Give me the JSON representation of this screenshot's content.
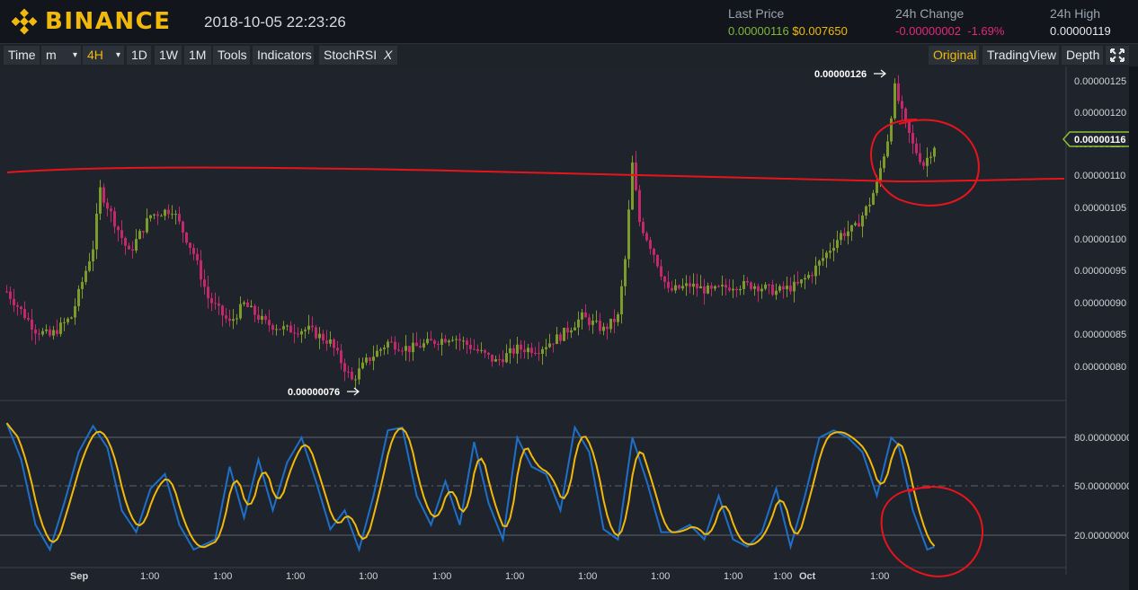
{
  "header": {
    "logo_text": "BINANCE",
    "datetime": "2018-10-05 22:23:26",
    "last_price_label": "Last Price",
    "last_price_btc": "0.00000116",
    "last_price_usd": "$0.007650",
    "change_label": "24h Change",
    "change_value": "-0.00000002",
    "change_percent": "-1.69%",
    "high_label": "24h High",
    "high_value": "0.00000119"
  },
  "toolbar": {
    "time": "Time",
    "minutes": "m",
    "minutes_caret": "▾",
    "h4": "4H",
    "h4_caret": "▾",
    "d1": "1D",
    "w1": "1W",
    "m1": "1M",
    "tools": "Tools",
    "indicators": "Indicators",
    "stochrsi": "StochRSI",
    "stochrsi_close": "X",
    "original": "Original",
    "tradingview": "TradingView",
    "depth": "Depth",
    "fullscreen_icon": "expand-icon"
  },
  "colors": {
    "up": "#7c9b2a",
    "down": "#c2296d",
    "stoch_k": "#1e6fc8",
    "stoch_d": "#f0b90b",
    "annotation": "#e8141c",
    "accent": "#f0b90b",
    "price_tag_border": "#8cbf35"
  },
  "price_axis": {
    "labels": [
      "0.00000125",
      "0.00000120",
      "0.00000115",
      "0.00000110",
      "0.00000105",
      "0.00000100",
      "0.00000095",
      "0.00000090",
      "0.00000085",
      "0.00000080"
    ],
    "current_tag": "0.00000116"
  },
  "markers": {
    "high": "0.00000126",
    "low": "0.00000076"
  },
  "stoch_axis": {
    "labels": [
      "80.00000000",
      "50.00000000",
      "20.00000000"
    ]
  },
  "time_axis": {
    "labels": [
      "Sep",
      "1:00",
      "1:00",
      "1:00",
      "1:00",
      "1:00",
      "1:00",
      "1:00",
      "1:00",
      "1:00",
      "1:00",
      "Oct",
      "1:00"
    ]
  },
  "chart_data": {
    "type": "candlestick",
    "price_range": [
      7.4e-07,
      1.275e-06
    ],
    "close_path": [
      {
        "i": 0,
        "p": 92
      },
      {
        "i": 8,
        "p": 86
      },
      {
        "i": 12,
        "p": 85
      },
      {
        "i": 18,
        "p": 88
      },
      {
        "i": 24,
        "p": 99
      },
      {
        "i": 26,
        "p": 108
      },
      {
        "i": 30,
        "p": 103
      },
      {
        "i": 34,
        "p": 98
      },
      {
        "i": 40,
        "p": 104
      },
      {
        "i": 46,
        "p": 105
      },
      {
        "i": 52,
        "p": 98
      },
      {
        "i": 56,
        "p": 91
      },
      {
        "i": 62,
        "p": 87
      },
      {
        "i": 66,
        "p": 90
      },
      {
        "i": 72,
        "p": 87
      },
      {
        "i": 78,
        "p": 86
      },
      {
        "i": 84,
        "p": 86
      },
      {
        "i": 90,
        "p": 84
      },
      {
        "i": 96,
        "p": 78
      },
      {
        "i": 100,
        "p": 81
      },
      {
        "i": 106,
        "p": 84
      },
      {
        "i": 112,
        "p": 83
      },
      {
        "i": 118,
        "p": 84
      },
      {
        "i": 124,
        "p": 85
      },
      {
        "i": 130,
        "p": 83
      },
      {
        "i": 136,
        "p": 81
      },
      {
        "i": 142,
        "p": 83
      },
      {
        "i": 148,
        "p": 83
      },
      {
        "i": 154,
        "p": 85
      },
      {
        "i": 160,
        "p": 88
      },
      {
        "i": 166,
        "p": 86
      },
      {
        "i": 170,
        "p": 88
      },
      {
        "i": 172,
        "p": 97
      },
      {
        "i": 174,
        "p": 112
      },
      {
        "i": 176,
        "p": 103
      },
      {
        "i": 180,
        "p": 98
      },
      {
        "i": 184,
        "p": 92
      },
      {
        "i": 190,
        "p": 93
      },
      {
        "i": 196,
        "p": 92
      },
      {
        "i": 202,
        "p": 93
      },
      {
        "i": 208,
        "p": 93
      },
      {
        "i": 214,
        "p": 92
      },
      {
        "i": 220,
        "p": 93
      },
      {
        "i": 224,
        "p": 95
      },
      {
        "i": 228,
        "p": 98
      },
      {
        "i": 232,
        "p": 101
      },
      {
        "i": 236,
        "p": 102
      },
      {
        "i": 240,
        "p": 106
      },
      {
        "i": 242,
        "p": 109
      },
      {
        "i": 245,
        "p": 116
      },
      {
        "i": 247,
        "p": 124
      },
      {
        "i": 249,
        "p": 120
      },
      {
        "i": 252,
        "p": 115
      },
      {
        "i": 255,
        "p": 112
      },
      {
        "i": 258,
        "p": 115
      }
    ],
    "stoch_k_path": [
      {
        "i": 0,
        "v": 95
      },
      {
        "i": 4,
        "v": 70
      },
      {
        "i": 8,
        "v": 25
      },
      {
        "i": 12,
        "v": 8
      },
      {
        "i": 16,
        "v": 40
      },
      {
        "i": 20,
        "v": 75
      },
      {
        "i": 24,
        "v": 93
      },
      {
        "i": 28,
        "v": 78
      },
      {
        "i": 32,
        "v": 35
      },
      {
        "i": 36,
        "v": 20
      },
      {
        "i": 40,
        "v": 50
      },
      {
        "i": 44,
        "v": 60
      },
      {
        "i": 48,
        "v": 25
      },
      {
        "i": 52,
        "v": 8
      },
      {
        "i": 58,
        "v": 15
      },
      {
        "i": 62,
        "v": 65
      },
      {
        "i": 66,
        "v": 30
      },
      {
        "i": 70,
        "v": 70
      },
      {
        "i": 74,
        "v": 35
      },
      {
        "i": 78,
        "v": 68
      },
      {
        "i": 82,
        "v": 85
      },
      {
        "i": 86,
        "v": 55
      },
      {
        "i": 90,
        "v": 22
      },
      {
        "i": 94,
        "v": 35
      },
      {
        "i": 98,
        "v": 8
      },
      {
        "i": 102,
        "v": 45
      },
      {
        "i": 106,
        "v": 90
      },
      {
        "i": 110,
        "v": 92
      },
      {
        "i": 114,
        "v": 45
      },
      {
        "i": 118,
        "v": 25
      },
      {
        "i": 122,
        "v": 55
      },
      {
        "i": 126,
        "v": 25
      },
      {
        "i": 130,
        "v": 82
      },
      {
        "i": 134,
        "v": 40
      },
      {
        "i": 138,
        "v": 15
      },
      {
        "i": 142,
        "v": 85
      },
      {
        "i": 146,
        "v": 65
      },
      {
        "i": 150,
        "v": 60
      },
      {
        "i": 154,
        "v": 35
      },
      {
        "i": 158,
        "v": 92
      },
      {
        "i": 162,
        "v": 75
      },
      {
        "i": 166,
        "v": 22
      },
      {
        "i": 170,
        "v": 15
      },
      {
        "i": 174,
        "v": 85
      },
      {
        "i": 178,
        "v": 55
      },
      {
        "i": 182,
        "v": 20
      },
      {
        "i": 186,
        "v": 20
      },
      {
        "i": 190,
        "v": 25
      },
      {
        "i": 194,
        "v": 15
      },
      {
        "i": 198,
        "v": 45
      },
      {
        "i": 202,
        "v": 15
      },
      {
        "i": 206,
        "v": 10
      },
      {
        "i": 210,
        "v": 20
      },
      {
        "i": 214,
        "v": 50
      },
      {
        "i": 218,
        "v": 10
      },
      {
        "i": 222,
        "v": 45
      },
      {
        "i": 226,
        "v": 85
      },
      {
        "i": 230,
        "v": 90
      },
      {
        "i": 234,
        "v": 85
      },
      {
        "i": 238,
        "v": 75
      },
      {
        "i": 242,
        "v": 45
      },
      {
        "i": 246,
        "v": 85
      },
      {
        "i": 248,
        "v": 80
      },
      {
        "i": 252,
        "v": 35
      },
      {
        "i": 256,
        "v": 8
      },
      {
        "i": 258,
        "v": 10
      }
    ]
  }
}
